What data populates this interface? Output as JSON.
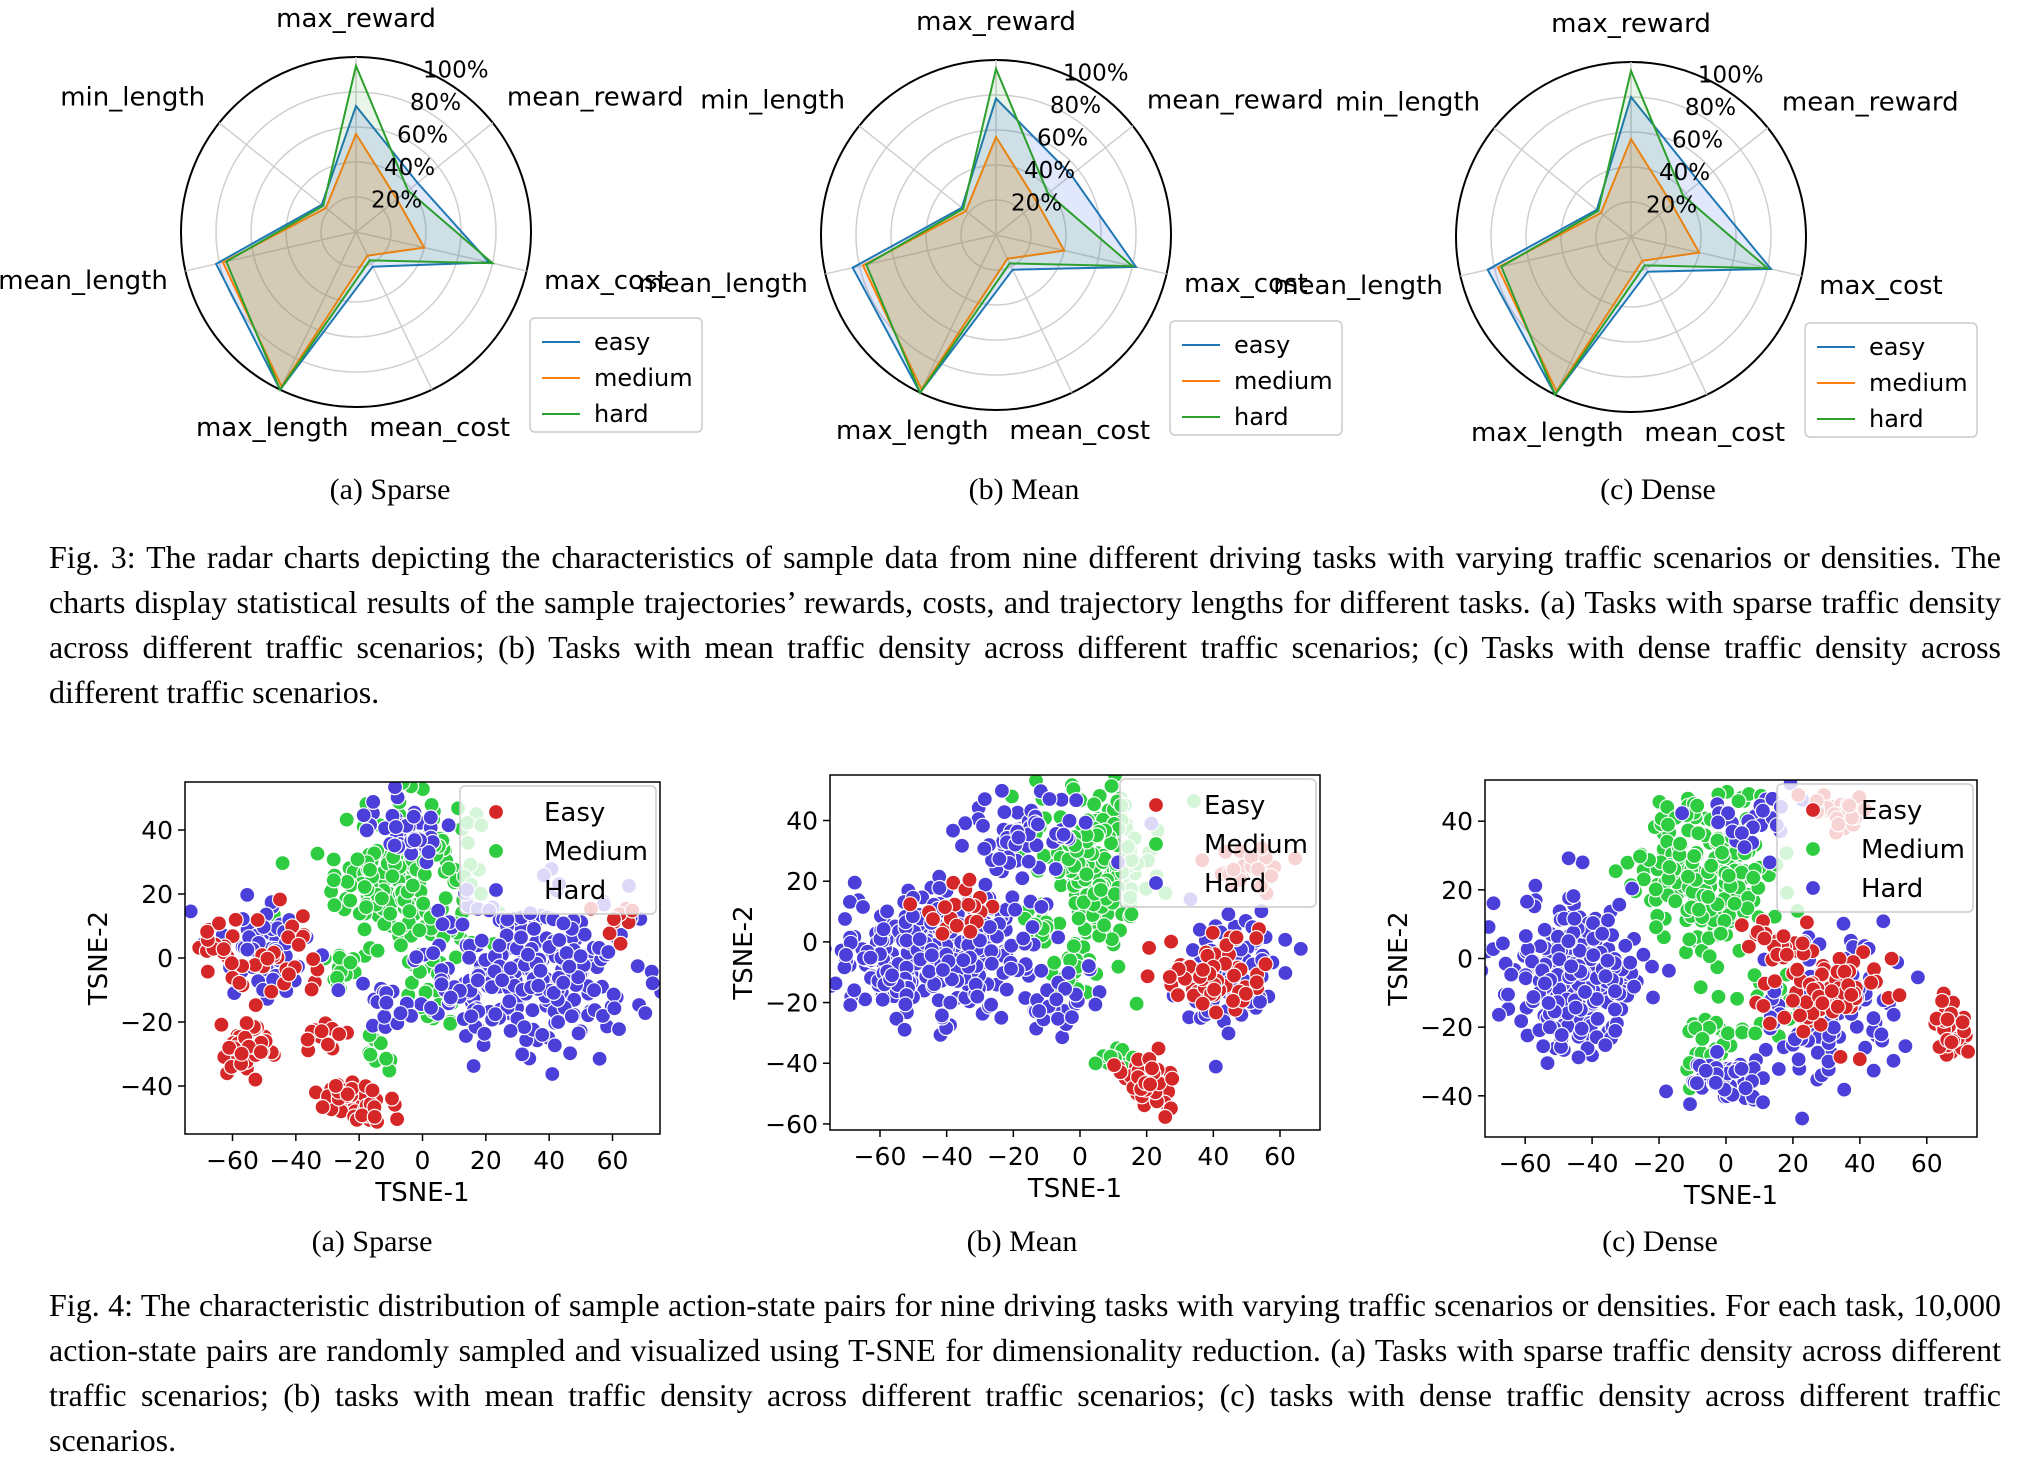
{
  "fig3": {
    "caption_label": "Fig. 3:",
    "caption_text": "The radar charts depicting the characteristics of sample data from nine different driving tasks with varying traffic scenarios or densities. The charts display statistical results of the sample trajectories’ rewards, costs, and trajectory lengths for different tasks. (a) Tasks with sparse traffic density across different traffic scenarios; (b) Tasks with mean traffic density across different traffic scenarios; (c) Tasks with dense traffic density across different traffic scenarios.",
    "subcaptions": [
      "(a) Sparse",
      "(b) Mean",
      "(c) Dense"
    ]
  },
  "fig4": {
    "caption_label": "Fig. 4:",
    "caption_text": "The characteristic distribution of sample action-state pairs for nine driving tasks with varying traffic scenarios or densities. For each task, 10,000 action-state pairs are randomly sampled and visualized using T-SNE for dimensionality reduction. (a) Tasks with sparse traffic density across different traffic scenarios; (b) tasks with mean traffic density across different traffic scenarios; (c) tasks with dense traffic density across different traffic scenarios.",
    "subcaptions": [
      "(a) Sparse",
      "(b) Mean",
      "(c) Dense"
    ]
  },
  "colors": {
    "easy_line": "#1f77b4",
    "medium_line": "#ff7f0e",
    "hard_line": "#2ca02c",
    "easy_point": "#d62728",
    "medium_point": "#2ecc40",
    "hard_point": "#4b3fd9"
  },
  "chart_data": [
    {
      "type": "radar",
      "panel": "Sparse",
      "axes": [
        "max_reward",
        "mean_reward",
        "max_cost",
        "mean_cost",
        "max_length",
        "mean_length",
        "min_length"
      ],
      "radial_ticks": [
        "20%",
        "40%",
        "60%",
        "80%",
        "100%"
      ],
      "legend": "lower-right",
      "series": [
        {
          "name": "easy",
          "values": [
            72,
            45,
            78,
            22,
            100,
            82,
            25
          ]
        },
        {
          "name": "medium",
          "values": [
            56,
            30,
            40,
            15,
            98,
            78,
            22
          ]
        },
        {
          "name": "hard",
          "values": [
            95,
            38,
            80,
            18,
            100,
            76,
            24
          ]
        }
      ]
    },
    {
      "type": "radar",
      "panel": "Mean",
      "axes": [
        "max_reward",
        "mean_reward",
        "max_cost",
        "mean_cost",
        "max_length",
        "mean_length",
        "min_length"
      ],
      "radial_ticks": [
        "20%",
        "40%",
        "60%",
        "80%",
        "100%"
      ],
      "legend": "lower-right",
      "series": [
        {
          "name": "easy",
          "values": [
            78,
            55,
            82,
            22,
            100,
            84,
            25
          ]
        },
        {
          "name": "medium",
          "values": [
            56,
            30,
            40,
            15,
            98,
            78,
            22
          ]
        },
        {
          "name": "hard",
          "values": [
            95,
            38,
            80,
            18,
            100,
            76,
            24
          ]
        }
      ]
    },
    {
      "type": "radar",
      "panel": "Dense",
      "axes": [
        "max_reward",
        "mean_reward",
        "max_cost",
        "mean_cost",
        "max_length",
        "mean_length",
        "min_length"
      ],
      "radial_ticks": [
        "20%",
        "40%",
        "60%",
        "80%",
        "100%"
      ],
      "legend": "lower-right",
      "series": [
        {
          "name": "easy",
          "values": [
            80,
            50,
            82,
            22,
            100,
            84,
            25
          ]
        },
        {
          "name": "medium",
          "values": [
            56,
            30,
            40,
            15,
            98,
            78,
            22
          ]
        },
        {
          "name": "hard",
          "values": [
            95,
            38,
            80,
            18,
            100,
            76,
            24
          ]
        }
      ]
    },
    {
      "type": "scatter",
      "panel": "Sparse",
      "xlabel": "TSNE-1",
      "ylabel": "TSNE-2",
      "xlim": [
        -75,
        75
      ],
      "ylim": [
        -55,
        55
      ],
      "xticks": [
        -60,
        -40,
        -20,
        0,
        20,
        40,
        60
      ],
      "yticks": [
        -40,
        -20,
        0,
        20,
        40
      ],
      "legend": "top-right",
      "series": [
        {
          "name": "Easy",
          "clusters": [
            [
              -55,
              -28,
              6,
              6,
              40
            ],
            [
              -20,
              -45,
              8,
              5,
              50
            ],
            [
              -45,
              -2,
              10,
              8,
              30
            ],
            [
              -30,
              -25,
              5,
              5,
              15
            ],
            [
              -65,
              2,
              4,
              6,
              15
            ],
            [
              60,
              10,
              5,
              4,
              10
            ]
          ]
        },
        {
          "name": "Medium",
          "clusters": [
            [
              -5,
              25,
              14,
              16,
              200
            ],
            [
              -25,
              -5,
              4,
              4,
              15
            ],
            [
              -50,
              10,
              3,
              3,
              10
            ],
            [
              5,
              -15,
              4,
              6,
              20
            ],
            [
              -15,
              -30,
              3,
              4,
              10
            ]
          ]
        },
        {
          "name": "Hard",
          "clusters": [
            [
              35,
              -5,
              22,
              16,
              260
            ],
            [
              -50,
              5,
              10,
              9,
              60
            ],
            [
              -5,
              40,
              8,
              6,
              40
            ],
            [
              -10,
              -15,
              6,
              6,
              15
            ]
          ]
        }
      ]
    },
    {
      "type": "scatter",
      "panel": "Mean",
      "xlabel": "TSNE-1",
      "ylabel": "TSNE-2",
      "xlim": [
        -75,
        72
      ],
      "ylim": [
        -62,
        55
      ],
      "xticks": [
        -60,
        -40,
        -20,
        0,
        20,
        40,
        60
      ],
      "yticks": [
        -60,
        -40,
        -20,
        0,
        20,
        40
      ],
      "legend": "top-right",
      "series": [
        {
          "name": "Easy",
          "clusters": [
            [
              20,
              -46,
              5,
              5,
              50
            ],
            [
              40,
              -10,
              10,
              10,
              60
            ],
            [
              50,
              25,
              8,
              4,
              25
            ],
            [
              -35,
              10,
              8,
              6,
              20
            ]
          ]
        },
        {
          "name": "Medium",
          "clusters": [
            [
              5,
              25,
              12,
              16,
              200
            ],
            [
              -5,
              -10,
              5,
              6,
              20
            ],
            [
              10,
              -38,
              5,
              3,
              10
            ]
          ]
        },
        {
          "name": "Hard",
          "clusters": [
            [
              -45,
              -5,
              20,
              14,
              300
            ],
            [
              -15,
              35,
              12,
              8,
              60
            ],
            [
              45,
              -10,
              10,
              12,
              80
            ],
            [
              -5,
              -20,
              6,
              6,
              25
            ]
          ]
        }
      ]
    },
    {
      "type": "scatter",
      "panel": "Dense",
      "xlabel": "TSNE-1",
      "ylabel": "TSNE-2",
      "xlim": [
        -72,
        75
      ],
      "ylim": [
        -52,
        52
      ],
      "xticks": [
        -60,
        -40,
        -20,
        0,
        20,
        40,
        60
      ],
      "yticks": [
        -40,
        -20,
        0,
        20,
        40
      ],
      "legend": "top-right",
      "series": [
        {
          "name": "Easy",
          "clusters": [
            [
              66,
              -20,
              4,
              5,
              35
            ],
            [
              30,
              -10,
              10,
              9,
              70
            ],
            [
              35,
              42,
              6,
              4,
              25
            ],
            [
              15,
              5,
              6,
              5,
              20
            ]
          ]
        },
        {
          "name": "Medium",
          "clusters": [
            [
              -5,
              25,
              13,
              14,
              220
            ],
            [
              -5,
              -25,
              6,
              6,
              25
            ],
            [
              15,
              -15,
              6,
              8,
              20
            ]
          ]
        },
        {
          "name": "Hard",
          "clusters": [
            [
              -45,
              -5,
              12,
              13,
              260
            ],
            [
              30,
              -15,
              14,
              14,
              100
            ],
            [
              0,
              -35,
              9,
              5,
              50
            ],
            [
              5,
              40,
              8,
              5,
              30
            ]
          ]
        }
      ]
    }
  ]
}
